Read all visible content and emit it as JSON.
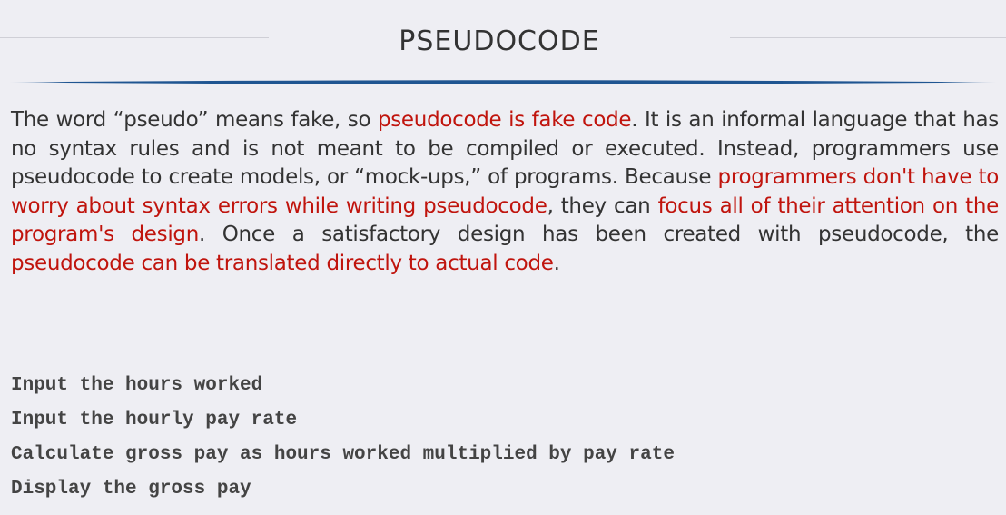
{
  "slide": {
    "title": "PSEUDOCODE",
    "accent_color": "#c0140d",
    "rule_color": "#1f5591"
  },
  "paragraph": {
    "segments": [
      {
        "text": "The word “pseudo”  means fake, so ",
        "highlight": false
      },
      {
        "text": "pseudocode is fake code",
        "highlight": true
      },
      {
        "text": ". It is an informal language that has no syntax rules and is not meant to be compiled or executed. Instead, programmers use pseudocode to create models, or “mock-ups,” of programs. Because ",
        "highlight": false
      },
      {
        "text": "programmers don't have to worry about syntax errors while writing pseudocode",
        "highlight": true
      },
      {
        "text": ", they can ",
        "highlight": false
      },
      {
        "text": "focus all of their attention on the program's design",
        "highlight": true
      },
      {
        "text": ". Once a satisfactory design has been created with pseudocode, the ",
        "highlight": false
      },
      {
        "text": "pseudocode can be translated directly to actual code",
        "highlight": true
      },
      {
        "text": ".",
        "highlight": false
      }
    ]
  },
  "code": {
    "lines": [
      "Input the hours worked",
      "Input the hourly pay rate",
      "Calculate gross pay as hours worked multiplied by pay rate",
      "Display the gross pay"
    ]
  }
}
